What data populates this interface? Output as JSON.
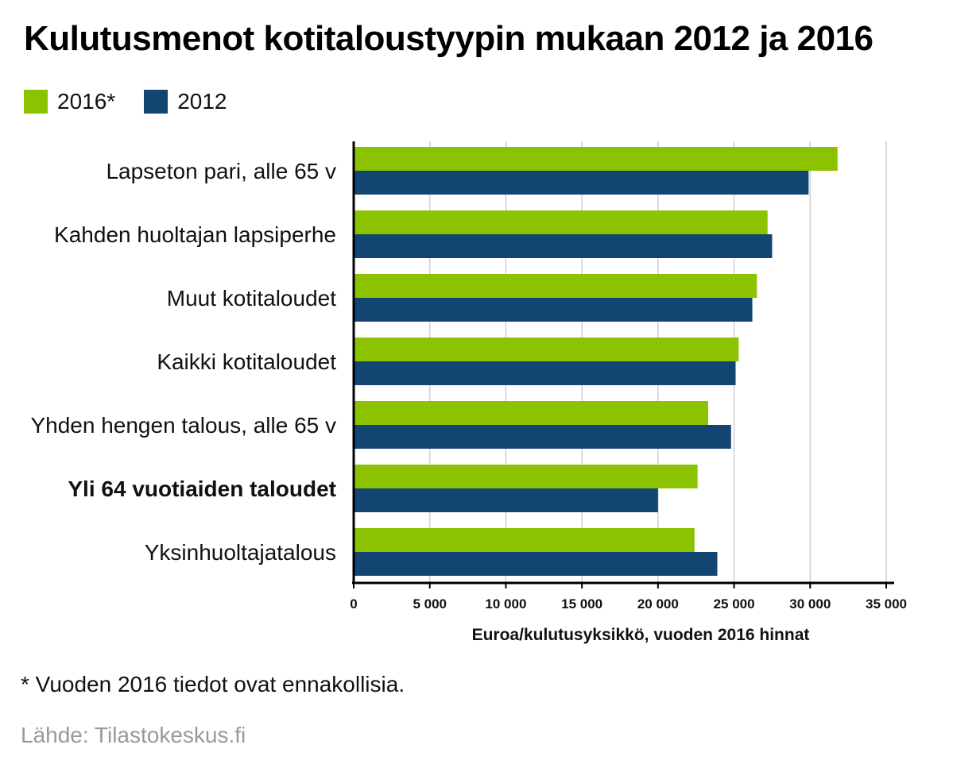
{
  "colors": {
    "series_2016": "#8cc300",
    "series_2012": "#134573",
    "grid": "#cfcfcf",
    "axis": "#000000",
    "source_text": "#999999"
  },
  "chart_data": {
    "type": "bar",
    "orientation": "horizontal",
    "title": "Kulutusmenot kotitaloustyypin mukaan 2012 ja 2016",
    "xlabel": "Euroa/kulutusyksikkö, vuoden 2016 hinnat",
    "ylabel": "",
    "xlim": [
      0,
      35000
    ],
    "xticks": [
      0,
      5000,
      10000,
      15000,
      20000,
      25000,
      30000,
      35000
    ],
    "xtick_labels": [
      "0",
      "5 000",
      "10 000",
      "15 000",
      "20 000",
      "25 000",
      "30 000",
      "35 000"
    ],
    "grid": "vertical",
    "legend_position": "top-left",
    "categories": [
      "Lapseton pari, alle 65 v",
      "Kahden huoltajan lapsiperhe",
      "Muut kotitaloudet",
      "Kaikki kotitaloudet",
      "Yhden hengen talous, alle 65 v",
      "Yli 64 vuotiaiden taloudet",
      "Yksinhuoltajatalous"
    ],
    "bold_category": "Yli 64 vuotiaiden taloudet",
    "series": [
      {
        "name": "2016*",
        "color": "#8cc300",
        "values": [
          31800,
          27200,
          26500,
          25300,
          23300,
          22600,
          22400
        ]
      },
      {
        "name": "2012",
        "color": "#134573",
        "values": [
          29900,
          27500,
          26200,
          25100,
          24800,
          20000,
          23900
        ]
      }
    ]
  },
  "footnote": "* Vuoden 2016 tiedot ovat ennakollisia.",
  "source": "Lähde: Tilastokeskus.fi"
}
